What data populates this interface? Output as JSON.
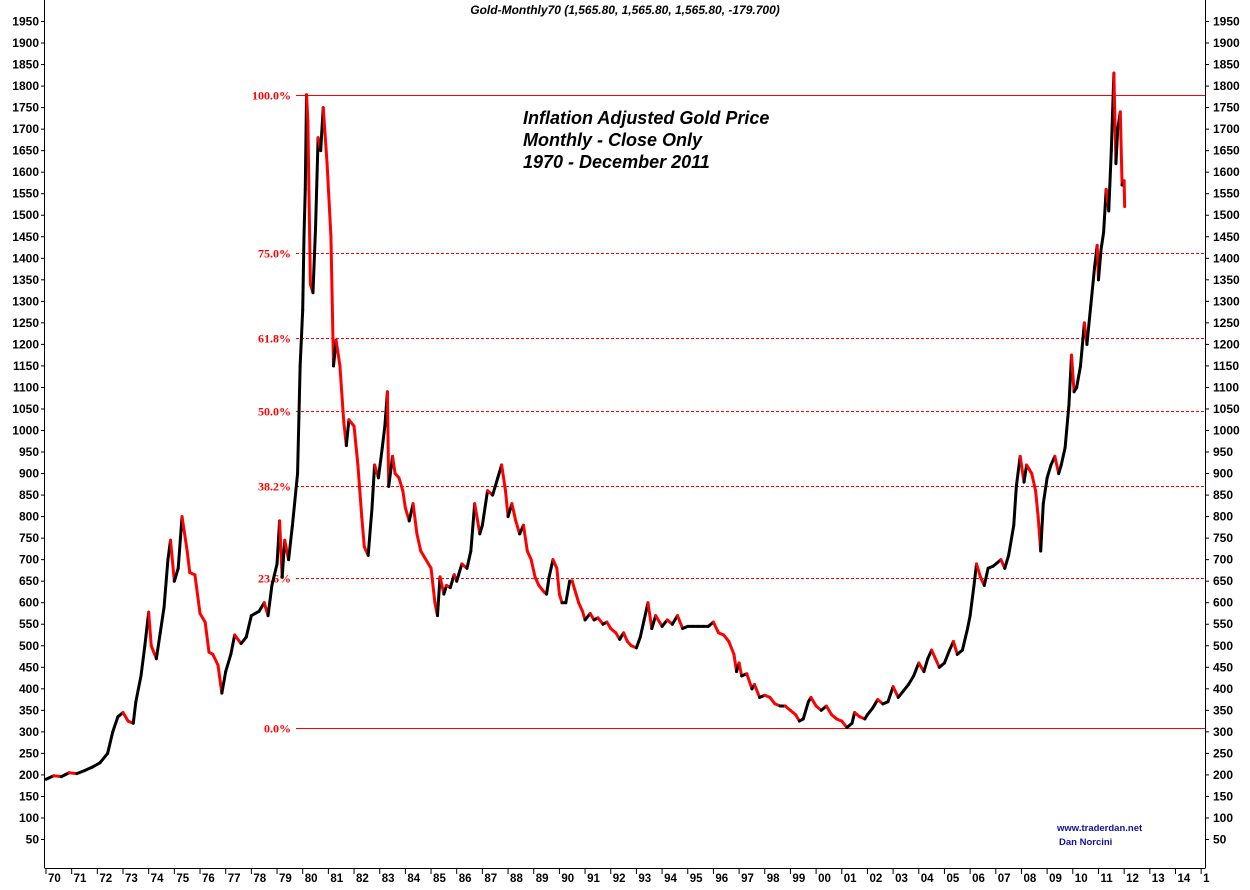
{
  "chart_data": {
    "type": "line",
    "header": "Gold-Monthly70 (1,565.80, 1,565.80, 1,565.80, -179.700)",
    "annotation_lines": [
      "Inflation Adjusted Gold Price",
      "Monthly - Close Only",
      "1970 - December 2011"
    ],
    "credits": [
      "www.traderdan.net",
      "Dan Norcini"
    ],
    "ylim": [
      40,
      1965
    ],
    "y_ticks": [
      50,
      100,
      150,
      200,
      250,
      300,
      350,
      400,
      450,
      500,
      550,
      600,
      650,
      700,
      750,
      800,
      850,
      900,
      950,
      1000,
      1050,
      1100,
      1150,
      1200,
      1250,
      1300,
      1350,
      1400,
      1450,
      1500,
      1550,
      1600,
      1650,
      1700,
      1750,
      1800,
      1850,
      1900,
      1950
    ],
    "x_tick_labels": [
      "70",
      "71",
      "72",
      "73",
      "74",
      "75",
      "76",
      "77",
      "78",
      "79",
      "80",
      "81",
      "82",
      "83",
      "84",
      "85",
      "86",
      "87",
      "88",
      "89",
      "90",
      "91",
      "92",
      "93",
      "94",
      "95",
      "96",
      "97",
      "98",
      "99",
      "00",
      "01",
      "02",
      "03",
      "04",
      "05",
      "06",
      "07",
      "08",
      "09",
      "10",
      "11",
      "12",
      "13",
      "14",
      "1"
    ],
    "fib_levels": [
      {
        "label": "100.0%",
        "value": 1780,
        "style": "solid"
      },
      {
        "label": "75.0%",
        "value": 1413,
        "style": "dashed"
      },
      {
        "label": "61.8%",
        "value": 1216,
        "style": "dashed"
      },
      {
        "label": "50.0%",
        "value": 1045,
        "style": "dashed"
      },
      {
        "label": "38.2%",
        "value": 872,
        "style": "dashed"
      },
      {
        "label": "23.6%",
        "value": 658,
        "style": "dashed"
      },
      {
        "label": "0.0%",
        "value": 308,
        "style": "solid"
      }
    ],
    "series": [
      {
        "up_color": "#000000",
        "down_color": "#ff0000",
        "points": [
          [
            1970.0,
            190
          ],
          [
            1970.3,
            198
          ],
          [
            1970.6,
            196
          ],
          [
            1970.9,
            205
          ],
          [
            1971.2,
            203
          ],
          [
            1971.5,
            210
          ],
          [
            1971.8,
            218
          ],
          [
            1972.1,
            228
          ],
          [
            1972.4,
            250
          ],
          [
            1972.6,
            300
          ],
          [
            1972.8,
            335
          ],
          [
            1973.0,
            345
          ],
          [
            1973.2,
            325
          ],
          [
            1973.4,
            320
          ],
          [
            1973.5,
            370
          ],
          [
            1973.7,
            430
          ],
          [
            1973.85,
            500
          ],
          [
            1974.0,
            578
          ],
          [
            1974.1,
            500
          ],
          [
            1974.3,
            470
          ],
          [
            1974.45,
            530
          ],
          [
            1974.6,
            590
          ],
          [
            1974.75,
            700
          ],
          [
            1974.85,
            745
          ],
          [
            1975.0,
            650
          ],
          [
            1975.15,
            680
          ],
          [
            1975.3,
            800
          ],
          [
            1975.5,
            720
          ],
          [
            1975.6,
            670
          ],
          [
            1975.8,
            665
          ],
          [
            1976.0,
            575
          ],
          [
            1976.2,
            555
          ],
          [
            1976.35,
            485
          ],
          [
            1976.5,
            480
          ],
          [
            1976.7,
            455
          ],
          [
            1976.85,
            390
          ],
          [
            1977.0,
            440
          ],
          [
            1977.2,
            480
          ],
          [
            1977.35,
            525
          ],
          [
            1977.6,
            505
          ],
          [
            1977.8,
            520
          ],
          [
            1978.0,
            570
          ],
          [
            1978.3,
            580
          ],
          [
            1978.5,
            600
          ],
          [
            1978.65,
            570
          ],
          [
            1978.8,
            640
          ],
          [
            1979.0,
            690
          ],
          [
            1979.1,
            790
          ],
          [
            1979.2,
            660
          ],
          [
            1979.3,
            745
          ],
          [
            1979.45,
            700
          ],
          [
            1979.6,
            780
          ],
          [
            1979.8,
            900
          ],
          [
            1979.9,
            1150
          ],
          [
            1980.0,
            1280
          ],
          [
            1980.05,
            1450
          ],
          [
            1980.1,
            1560
          ],
          [
            1980.15,
            1780
          ],
          [
            1980.2,
            1720
          ],
          [
            1980.3,
            1340
          ],
          [
            1980.4,
            1320
          ],
          [
            1980.5,
            1470
          ],
          [
            1980.6,
            1680
          ],
          [
            1980.7,
            1650
          ],
          [
            1980.8,
            1750
          ],
          [
            1980.95,
            1620
          ],
          [
            1981.1,
            1450
          ],
          [
            1981.2,
            1150
          ],
          [
            1981.3,
            1210
          ],
          [
            1981.45,
            1150
          ],
          [
            1981.6,
            1020
          ],
          [
            1981.7,
            965
          ],
          [
            1981.8,
            1025
          ],
          [
            1982.0,
            1010
          ],
          [
            1982.15,
            920
          ],
          [
            1982.3,
            800
          ],
          [
            1982.4,
            730
          ],
          [
            1982.55,
            710
          ],
          [
            1982.7,
            820
          ],
          [
            1982.8,
            920
          ],
          [
            1982.95,
            890
          ],
          [
            1983.1,
            960
          ],
          [
            1983.2,
            1010
          ],
          [
            1983.3,
            1090
          ],
          [
            1983.35,
            870
          ],
          [
            1983.5,
            940
          ],
          [
            1983.6,
            900
          ],
          [
            1983.75,
            890
          ],
          [
            1983.9,
            860
          ],
          [
            1984.0,
            820
          ],
          [
            1984.15,
            790
          ],
          [
            1984.3,
            830
          ],
          [
            1984.45,
            760
          ],
          [
            1984.6,
            720
          ],
          [
            1984.8,
            700
          ],
          [
            1985.0,
            680
          ],
          [
            1985.15,
            600
          ],
          [
            1985.25,
            570
          ],
          [
            1985.35,
            660
          ],
          [
            1985.5,
            620
          ],
          [
            1985.6,
            640
          ],
          [
            1985.75,
            635
          ],
          [
            1985.9,
            665
          ],
          [
            1986.0,
            650
          ],
          [
            1986.2,
            690
          ],
          [
            1986.4,
            680
          ],
          [
            1986.55,
            720
          ],
          [
            1986.7,
            830
          ],
          [
            1986.9,
            760
          ],
          [
            1987.0,
            780
          ],
          [
            1987.2,
            860
          ],
          [
            1987.4,
            850
          ],
          [
            1987.6,
            890
          ],
          [
            1987.75,
            920
          ],
          [
            1987.9,
            860
          ],
          [
            1988.0,
            800
          ],
          [
            1988.15,
            830
          ],
          [
            1988.3,
            790
          ],
          [
            1988.45,
            760
          ],
          [
            1988.6,
            780
          ],
          [
            1988.75,
            720
          ],
          [
            1988.9,
            700
          ],
          [
            1989.05,
            660
          ],
          [
            1989.2,
            640
          ],
          [
            1989.4,
            625
          ],
          [
            1989.5,
            620
          ],
          [
            1989.6,
            660
          ],
          [
            1989.75,
            700
          ],
          [
            1989.9,
            680
          ],
          [
            1990.0,
            620
          ],
          [
            1990.1,
            600
          ],
          [
            1990.25,
            600
          ],
          [
            1990.4,
            650
          ],
          [
            1990.5,
            650
          ],
          [
            1990.6,
            630
          ],
          [
            1990.75,
            600
          ],
          [
            1990.9,
            580
          ],
          [
            1991.0,
            560
          ],
          [
            1991.2,
            575
          ],
          [
            1991.35,
            560
          ],
          [
            1991.5,
            565
          ],
          [
            1991.7,
            550
          ],
          [
            1991.85,
            555
          ],
          [
            1992.0,
            540
          ],
          [
            1992.2,
            530
          ],
          [
            1992.35,
            515
          ],
          [
            1992.5,
            530
          ],
          [
            1992.65,
            510
          ],
          [
            1992.8,
            500
          ],
          [
            1993.0,
            495
          ],
          [
            1993.15,
            520
          ],
          [
            1993.3,
            560
          ],
          [
            1993.45,
            600
          ],
          [
            1993.6,
            540
          ],
          [
            1993.75,
            570
          ],
          [
            1994.0,
            545
          ],
          [
            1994.2,
            560
          ],
          [
            1994.4,
            550
          ],
          [
            1994.6,
            570
          ],
          [
            1994.8,
            540
          ],
          [
            1995.0,
            545
          ],
          [
            1995.2,
            545
          ],
          [
            1995.4,
            545
          ],
          [
            1995.6,
            545
          ],
          [
            1995.8,
            545
          ],
          [
            1996.0,
            555
          ],
          [
            1996.2,
            530
          ],
          [
            1996.4,
            525
          ],
          [
            1996.6,
            510
          ],
          [
            1996.8,
            480
          ],
          [
            1996.9,
            440
          ],
          [
            1997.0,
            460
          ],
          [
            1997.1,
            430
          ],
          [
            1997.3,
            435
          ],
          [
            1997.5,
            400
          ],
          [
            1997.6,
            410
          ],
          [
            1997.8,
            380
          ],
          [
            1998.0,
            385
          ],
          [
            1998.2,
            380
          ],
          [
            1998.4,
            365
          ],
          [
            1998.6,
            360
          ],
          [
            1998.8,
            360
          ],
          [
            1999.0,
            350
          ],
          [
            1999.2,
            340
          ],
          [
            1999.35,
            325
          ],
          [
            1999.5,
            330
          ],
          [
            1999.7,
            370
          ],
          [
            1999.8,
            380
          ],
          [
            2000.0,
            360
          ],
          [
            2000.2,
            350
          ],
          [
            2000.4,
            360
          ],
          [
            2000.6,
            340
          ],
          [
            2000.8,
            330
          ],
          [
            2001.0,
            325
          ],
          [
            2001.2,
            310
          ],
          [
            2001.4,
            320
          ],
          [
            2001.5,
            345
          ],
          [
            2001.7,
            335
          ],
          [
            2001.9,
            330
          ],
          [
            2002.0,
            340
          ],
          [
            2002.2,
            355
          ],
          [
            2002.4,
            375
          ],
          [
            2002.6,
            365
          ],
          [
            2002.8,
            370
          ],
          [
            2003.0,
            405
          ],
          [
            2003.2,
            380
          ],
          [
            2003.4,
            395
          ],
          [
            2003.6,
            410
          ],
          [
            2003.8,
            430
          ],
          [
            2004.0,
            460
          ],
          [
            2004.2,
            440
          ],
          [
            2004.35,
            470
          ],
          [
            2004.5,
            490
          ],
          [
            2004.65,
            470
          ],
          [
            2004.8,
            450
          ],
          [
            2005.0,
            460
          ],
          [
            2005.2,
            490
          ],
          [
            2005.35,
            510
          ],
          [
            2005.5,
            480
          ],
          [
            2005.7,
            490
          ],
          [
            2005.9,
            540
          ],
          [
            2006.0,
            570
          ],
          [
            2006.15,
            640
          ],
          [
            2006.25,
            690
          ],
          [
            2006.4,
            660
          ],
          [
            2006.55,
            640
          ],
          [
            2006.7,
            680
          ],
          [
            2006.9,
            685
          ],
          [
            2007.0,
            690
          ],
          [
            2007.2,
            700
          ],
          [
            2007.35,
            680
          ],
          [
            2007.5,
            710
          ],
          [
            2007.7,
            780
          ],
          [
            2007.8,
            870
          ],
          [
            2007.95,
            940
          ],
          [
            2008.1,
            880
          ],
          [
            2008.2,
            920
          ],
          [
            2008.4,
            900
          ],
          [
            2008.55,
            860
          ],
          [
            2008.65,
            800
          ],
          [
            2008.75,
            720
          ],
          [
            2008.85,
            830
          ],
          [
            2009.0,
            890
          ],
          [
            2009.15,
            920
          ],
          [
            2009.3,
            940
          ],
          [
            2009.45,
            900
          ],
          [
            2009.55,
            920
          ],
          [
            2009.7,
            960
          ],
          [
            2009.85,
            1060
          ],
          [
            2009.95,
            1175
          ],
          [
            2010.05,
            1090
          ],
          [
            2010.15,
            1100
          ],
          [
            2010.3,
            1150
          ],
          [
            2010.45,
            1250
          ],
          [
            2010.55,
            1200
          ],
          [
            2010.7,
            1290
          ],
          [
            2010.85,
            1380
          ],
          [
            2010.95,
            1430
          ],
          [
            2011.0,
            1350
          ],
          [
            2011.1,
            1420
          ],
          [
            2011.2,
            1460
          ],
          [
            2011.3,
            1560
          ],
          [
            2011.4,
            1510
          ],
          [
            2011.5,
            1650
          ],
          [
            2011.6,
            1830
          ],
          [
            2011.68,
            1620
          ],
          [
            2011.75,
            1700
          ],
          [
            2011.85,
            1740
          ],
          [
            2011.92,
            1570
          ],
          [
            2012.0,
            1580
          ],
          [
            2012.02,
            1520
          ]
        ]
      }
    ]
  }
}
